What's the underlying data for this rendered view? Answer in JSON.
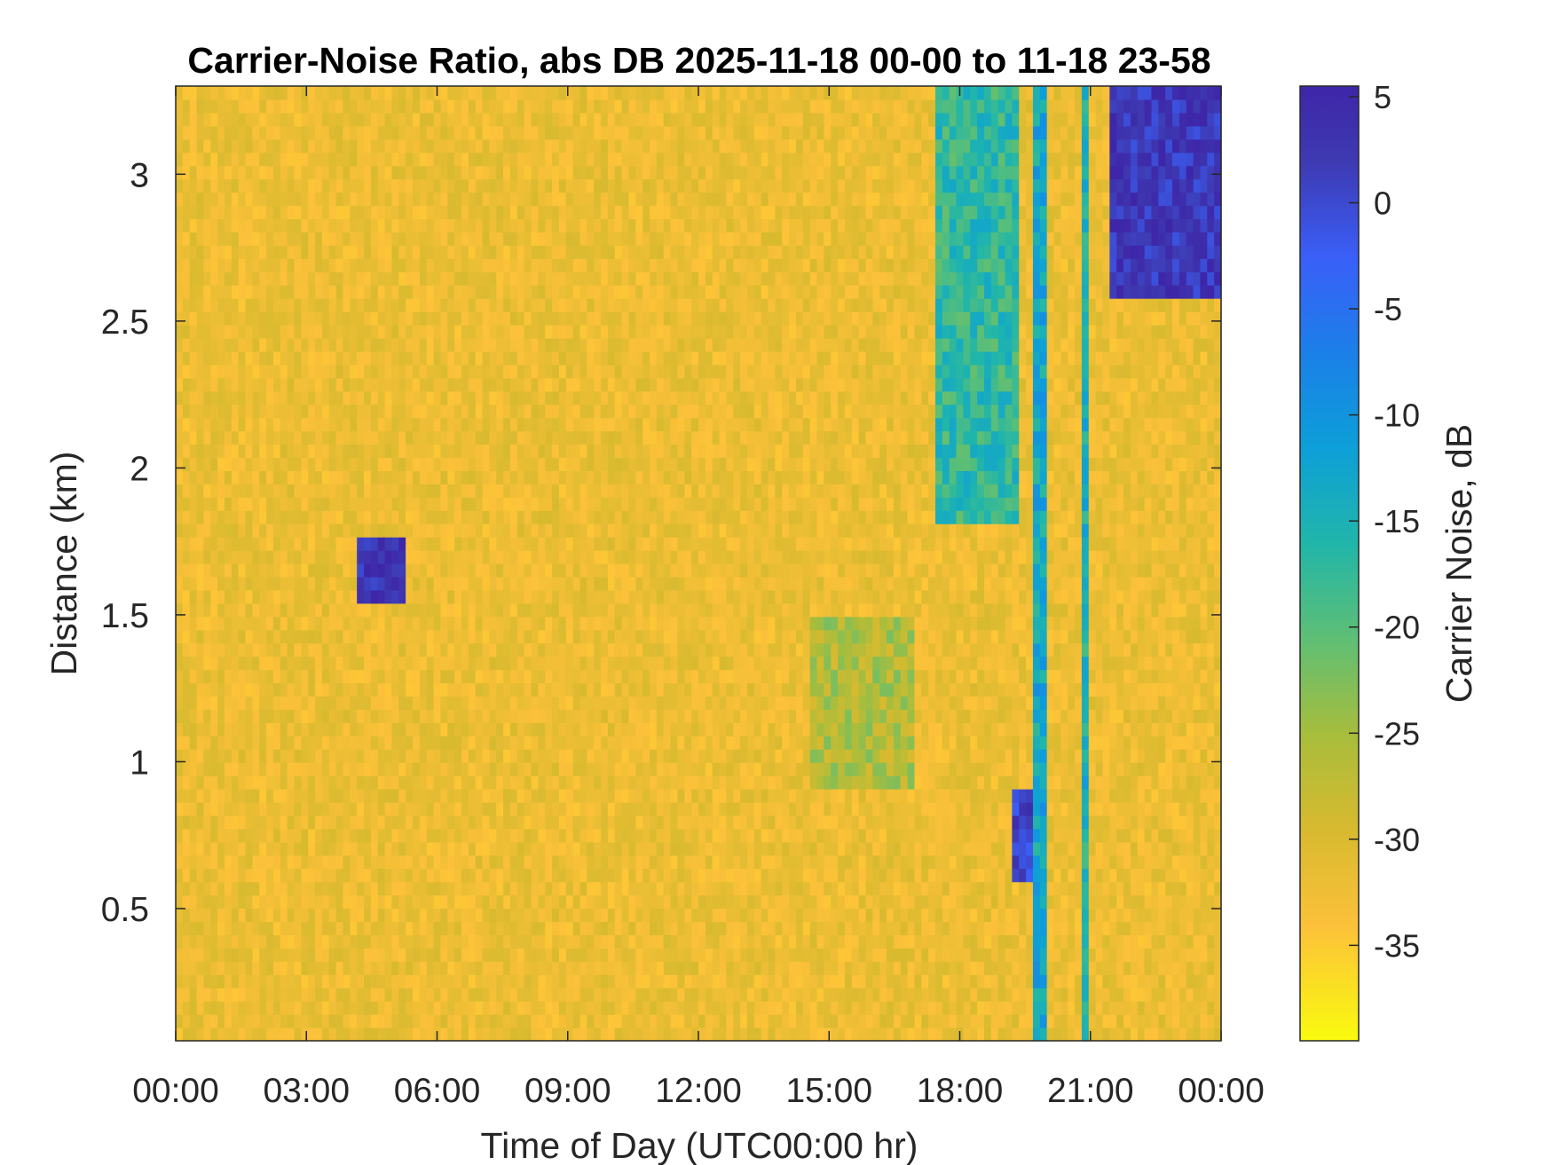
{
  "chart_data": {
    "type": "heatmap",
    "title": "Carrier-Noise Ratio, abs DB 2025-11-18 00-00 to 11-18 23-58",
    "xlabel": "Time of Day (UTC00:00 hr)",
    "ylabel": "Distance (km)",
    "x_ticks": [
      "00:00",
      "03:00",
      "06:00",
      "09:00",
      "12:00",
      "15:00",
      "18:00",
      "21:00",
      "00:00"
    ],
    "x_range_hours": [
      0,
      24
    ],
    "y_ticks": [
      "0.5",
      "1",
      "1.5",
      "2",
      "2.5",
      "3"
    ],
    "y_range_km": [
      0.05,
      3.3
    ],
    "colorbar": {
      "label": "Carrier Noise, dB",
      "ticks": [
        "5",
        "0",
        "-5",
        "-10",
        "-15",
        "-20",
        "-25",
        "-30",
        "-35"
      ],
      "range": [
        -39.5,
        5.5
      ],
      "colormap": "parula-reversed",
      "colors": [
        "#f9fb0e",
        "#fcc13a",
        "#d8ba2f",
        "#a8bd3c",
        "#5fbf74",
        "#21b6a9",
        "#0d9fd8",
        "#1b80e8",
        "#3a5ff8",
        "#3e3ab2",
        "#3e26a8"
      ]
    },
    "background_db": -33,
    "features": [
      {
        "name": "point target",
        "t": [
          4.1,
          5.3
        ],
        "km": [
          1.55,
          1.78
        ],
        "db": 3
      },
      {
        "name": "upper cloud layer",
        "t": [
          21.5,
          24
        ],
        "km": [
          2.6,
          3.3
        ],
        "db": 2
      },
      {
        "name": "vertical streak",
        "t": [
          19.7,
          20.0
        ],
        "km": [
          0.05,
          3.3
        ],
        "db": -14
      },
      {
        "name": "vertical streak",
        "t": [
          20.8,
          20.95
        ],
        "km": [
          0.05,
          3.3
        ],
        "db": -16
      },
      {
        "name": "low cloud",
        "t": [
          19.2,
          19.7
        ],
        "km": [
          0.6,
          0.9
        ],
        "db": 0
      },
      {
        "name": "diffuse return",
        "t": [
          17.5,
          19.3
        ],
        "km": [
          1.8,
          3.3
        ],
        "db": -18
      },
      {
        "name": "weak return",
        "t": [
          14.5,
          17.0
        ],
        "km": [
          0.9,
          1.5
        ],
        "db": -27
      }
    ]
  }
}
